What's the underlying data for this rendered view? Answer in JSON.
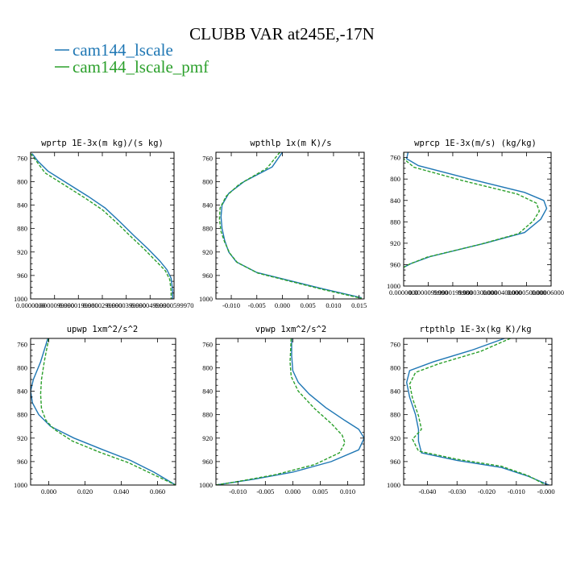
{
  "figure": {
    "title": "CLUBB VAR at245E,-17N",
    "legend": [
      {
        "label": "cam144_lscale",
        "color": "#1f77b4",
        "dash": "solid"
      },
      {
        "label": "cam144_lscale_pmf",
        "color": "#2ca02c",
        "dash": "dashed"
      }
    ]
  },
  "chart_data": [
    {
      "type": "line",
      "title": "wprtp  1E-3x(m kg)/(s kg)",
      "xlim": [
        0,
        1
      ],
      "ylim": [
        1000,
        750
      ],
      "y_ticks": [
        760,
        800,
        840,
        880,
        920,
        960,
        1000
      ],
      "x_ticks": [
        {
          "v": 0.0,
          "label": "0.0000000"
        },
        {
          "v": 0.167,
          "label": "0.0000099990"
        },
        {
          "v": 0.333,
          "label": "0.0000199980"
        },
        {
          "v": 0.5,
          "label": "0.0000299990"
        },
        {
          "v": 0.667,
          "label": "0.0000399990"
        },
        {
          "v": 0.833,
          "label": "0.0000499990"
        },
        {
          "v": 1.0,
          "label": "0.0000599970"
        }
      ],
      "series": [
        {
          "name": "cam144_lscale",
          "color": "#1f77b4",
          "dash": "solid",
          "points": [
            [
              0.01,
              752
            ],
            [
              0.05,
              765
            ],
            [
              0.12,
              782
            ],
            [
              0.25,
              802
            ],
            [
              0.4,
              825
            ],
            [
              0.52,
              845
            ],
            [
              0.62,
              868
            ],
            [
              0.72,
              892
            ],
            [
              0.82,
              915
            ],
            [
              0.9,
              935
            ],
            [
              0.95,
              950
            ],
            [
              0.98,
              965
            ],
            [
              0.99,
              985
            ],
            [
              0.99,
              1000
            ]
          ]
        },
        {
          "name": "cam144_lscale_pmf",
          "color": "#2ca02c",
          "dash": "dashed",
          "points": [
            [
              0.0,
              752
            ],
            [
              0.04,
              765
            ],
            [
              0.1,
              785
            ],
            [
              0.23,
              805
            ],
            [
              0.38,
              828
            ],
            [
              0.5,
              848
            ],
            [
              0.6,
              870
            ],
            [
              0.7,
              894
            ],
            [
              0.8,
              917
            ],
            [
              0.88,
              937
            ],
            [
              0.94,
              952
            ],
            [
              0.97,
              967
            ],
            [
              0.98,
              987
            ],
            [
              0.98,
              1000
            ]
          ]
        }
      ]
    },
    {
      "type": "line",
      "title": "wpthlp  1x(m K)/s",
      "xlim": [
        -0.013,
        0.016
      ],
      "ylim": [
        1000,
        750
      ],
      "y_ticks": [
        760,
        800,
        840,
        880,
        920,
        960,
        1000
      ],
      "x_ticks": [
        {
          "v": -0.01,
          "label": "-0.010"
        },
        {
          "v": -0.005,
          "label": "-0.005"
        },
        {
          "v": 0.0,
          "label": "0.000"
        },
        {
          "v": 0.005,
          "label": "0.005"
        },
        {
          "v": 0.01,
          "label": "0.010"
        },
        {
          "v": 0.015,
          "label": "0.015"
        }
      ],
      "series": [
        {
          "name": "cam144_lscale",
          "color": "#1f77b4",
          "dash": "solid",
          "points": [
            [
              0.0,
              750
            ],
            [
              -0.002,
              775
            ],
            [
              -0.0075,
              800
            ],
            [
              -0.0105,
              820
            ],
            [
              -0.0118,
              840
            ],
            [
              -0.012,
              860
            ],
            [
              -0.0118,
              880
            ],
            [
              -0.0113,
              900
            ],
            [
              -0.0105,
              920
            ],
            [
              -0.009,
              937
            ],
            [
              -0.005,
              955
            ],
            [
              0.002,
              970
            ],
            [
              0.008,
              983
            ],
            [
              0.0155,
              998
            ]
          ]
        },
        {
          "name": "cam144_lscale_pmf",
          "color": "#2ca02c",
          "dash": "dashed",
          "points": [
            [
              -0.0005,
              750
            ],
            [
              -0.003,
              777
            ],
            [
              -0.0085,
              805
            ],
            [
              -0.011,
              825
            ],
            [
              -0.0122,
              845
            ],
            [
              -0.0123,
              865
            ],
            [
              -0.012,
              885
            ],
            [
              -0.0113,
              903
            ],
            [
              -0.0103,
              922
            ],
            [
              -0.0088,
              938
            ],
            [
              -0.0048,
              956
            ],
            [
              0.002,
              971
            ],
            [
              0.008,
              984
            ],
            [
              0.0155,
              999
            ]
          ]
        }
      ]
    },
    {
      "type": "line",
      "title": "wprcp  1E-3x(m/s) (kg/kg)",
      "xlim": [
        0,
        1
      ],
      "ylim": [
        1000,
        750
      ],
      "y_ticks": [
        760,
        800,
        840,
        880,
        920,
        960,
        1000
      ],
      "x_ticks": [
        {
          "v": 0.0,
          "label": "0.0000000"
        },
        {
          "v": 0.167,
          "label": "0.0000099990"
        },
        {
          "v": 0.333,
          "label": "0.0000199980"
        },
        {
          "v": 0.5,
          "label": "0.0000300000"
        },
        {
          "v": 0.667,
          "label": "0.0000400000"
        },
        {
          "v": 0.833,
          "label": "0.0000500000"
        },
        {
          "v": 1.0,
          "label": "0.0000600000"
        }
      ],
      "series": [
        {
          "name": "cam144_lscale",
          "color": "#1f77b4",
          "dash": "solid",
          "points": [
            [
              0.03,
              750
            ],
            [
              0.02,
              762
            ],
            [
              0.1,
              775
            ],
            [
              0.45,
              800
            ],
            [
              0.82,
              825
            ],
            [
              0.95,
              840
            ],
            [
              0.97,
              855
            ],
            [
              0.93,
              875
            ],
            [
              0.82,
              900
            ],
            [
              0.55,
              920
            ],
            [
              0.18,
              945
            ],
            [
              0.05,
              958
            ],
            [
              0.0,
              965
            ]
          ]
        },
        {
          "name": "cam144_lscale_pmf",
          "color": "#2ca02c",
          "dash": "dashed",
          "points": [
            [
              0.0,
              750
            ],
            [
              0.0,
              762
            ],
            [
              0.07,
              778
            ],
            [
              0.4,
              803
            ],
            [
              0.77,
              828
            ],
            [
              0.9,
              845
            ],
            [
              0.92,
              860
            ],
            [
              0.88,
              878
            ],
            [
              0.78,
              902
            ],
            [
              0.52,
              922
            ],
            [
              0.16,
              946
            ],
            [
              0.04,
              959
            ],
            [
              0.0,
              965
            ]
          ]
        }
      ]
    },
    {
      "type": "line",
      "title": "upwp  1xm^2/s^2",
      "xlim": [
        -0.01,
        0.07
      ],
      "ylim": [
        1000,
        750
      ],
      "y_ticks": [
        760,
        800,
        840,
        880,
        920,
        960,
        1000
      ],
      "x_ticks": [
        {
          "v": 0.0,
          "label": "0.000"
        },
        {
          "v": 0.02,
          "label": "0.020"
        },
        {
          "v": 0.04,
          "label": "0.040"
        },
        {
          "v": 0.06,
          "label": "0.060"
        }
      ],
      "series": [
        {
          "name": "cam144_lscale",
          "color": "#1f77b4",
          "dash": "solid",
          "points": [
            [
              -0.0005,
              750
            ],
            [
              -0.0045,
              790
            ],
            [
              -0.0085,
              820
            ],
            [
              -0.01,
              840
            ],
            [
              -0.009,
              860
            ],
            [
              -0.0055,
              880
            ],
            [
              0.001,
              900
            ],
            [
              0.014,
              920
            ],
            [
              0.03,
              940
            ],
            [
              0.045,
              958
            ],
            [
              0.058,
              978
            ],
            [
              0.07,
              1000
            ]
          ]
        },
        {
          "name": "cam144_lscale_pmf",
          "color": "#2ca02c",
          "dash": "dashed",
          "points": [
            [
              0.0,
              750
            ],
            [
              -0.0025,
              790
            ],
            [
              -0.004,
              820
            ],
            [
              -0.0045,
              845
            ],
            [
              -0.004,
              870
            ],
            [
              -0.0015,
              890
            ],
            [
              0.003,
              905
            ],
            [
              0.013,
              925
            ],
            [
              0.028,
              944
            ],
            [
              0.044,
              962
            ],
            [
              0.057,
              981
            ],
            [
              0.07,
              1000
            ]
          ]
        }
      ]
    },
    {
      "type": "line",
      "title": "vpwp  1xm^2/s^2",
      "xlim": [
        -0.014,
        0.013
      ],
      "ylim": [
        1000,
        750
      ],
      "y_ticks": [
        760,
        800,
        840,
        880,
        920,
        960,
        1000
      ],
      "x_ticks": [
        {
          "v": -0.01,
          "label": "-0.010"
        },
        {
          "v": -0.005,
          "label": "-0.005"
        },
        {
          "v": 0.0,
          "label": "0.000"
        },
        {
          "v": 0.005,
          "label": "0.005"
        },
        {
          "v": 0.01,
          "label": "0.010"
        }
      ],
      "series": [
        {
          "name": "cam144_lscale",
          "color": "#1f77b4",
          "dash": "solid",
          "points": [
            [
              -0.0002,
              750
            ],
            [
              -0.0002,
              780
            ],
            [
              0.0,
              805
            ],
            [
              0.001,
              825
            ],
            [
              0.003,
              845
            ],
            [
              0.006,
              868
            ],
            [
              0.0095,
              890
            ],
            [
              0.012,
              905
            ],
            [
              0.013,
              920
            ],
            [
              0.012,
              940
            ],
            [
              0.007,
              960
            ],
            [
              0.0,
              978
            ],
            [
              -0.007,
              990
            ],
            [
              -0.014,
              1000
            ]
          ]
        },
        {
          "name": "cam144_lscale_pmf",
          "color": "#2ca02c",
          "dash": "dashed",
          "points": [
            [
              -0.0003,
              750
            ],
            [
              -0.0005,
              790
            ],
            [
              -0.0003,
              815
            ],
            [
              0.001,
              840
            ],
            [
              0.004,
              870
            ],
            [
              0.007,
              895
            ],
            [
              0.009,
              915
            ],
            [
              0.0095,
              928
            ],
            [
              0.0085,
              945
            ],
            [
              0.004,
              965
            ],
            [
              -0.003,
              982
            ],
            [
              -0.01,
              994
            ],
            [
              -0.014,
              1000
            ]
          ]
        }
      ]
    },
    {
      "type": "line",
      "title": "rtpthlp  1E-3x(kg K)/kg",
      "xlim": [
        -0.048,
        0.002
      ],
      "ylim": [
        1000,
        750
      ],
      "y_ticks": [
        760,
        800,
        840,
        880,
        920,
        960,
        1000
      ],
      "x_ticks": [
        {
          "v": -0.04,
          "label": "-0.040"
        },
        {
          "v": -0.03,
          "label": "-0.030"
        },
        {
          "v": -0.02,
          "label": "-0.020"
        },
        {
          "v": -0.01,
          "label": "-0.010"
        },
        {
          "v": 0.0,
          "label": "-0.000"
        }
      ],
      "series": [
        {
          "name": "cam144_lscale",
          "color": "#1f77b4",
          "dash": "solid",
          "points": [
            [
              -0.014,
              750
            ],
            [
              -0.025,
              770
            ],
            [
              -0.038,
              790
            ],
            [
              -0.046,
              805
            ],
            [
              -0.047,
              825
            ],
            [
              -0.046,
              850
            ],
            [
              -0.044,
              880
            ],
            [
              -0.043,
              905
            ],
            [
              -0.043,
              925
            ],
            [
              -0.042,
              945
            ],
            [
              -0.03,
              958
            ],
            [
              -0.015,
              970
            ],
            [
              -0.006,
              985
            ],
            [
              0.001,
              1000
            ]
          ]
        },
        {
          "name": "cam144_lscale_pmf",
          "color": "#2ca02c",
          "dash": "dashed",
          "points": [
            [
              -0.012,
              750
            ],
            [
              -0.022,
              772
            ],
            [
              -0.036,
              793
            ],
            [
              -0.044,
              808
            ],
            [
              -0.046,
              828
            ],
            [
              -0.045,
              852
            ],
            [
              -0.043,
              882
            ],
            [
              -0.042,
              905
            ],
            [
              -0.045,
              922
            ],
            [
              -0.043,
              942
            ],
            [
              -0.03,
              956
            ],
            [
              -0.015,
              968
            ],
            [
              -0.006,
              984
            ],
            [
              0.0,
              1000
            ]
          ]
        }
      ]
    }
  ]
}
